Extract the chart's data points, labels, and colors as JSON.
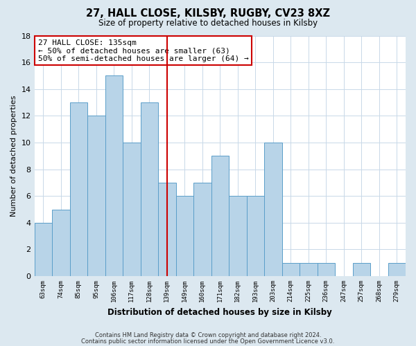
{
  "title": "27, HALL CLOSE, KILSBY, RUGBY, CV23 8XZ",
  "subtitle": "Size of property relative to detached houses in Kilsby",
  "xlabel": "Distribution of detached houses by size in Kilsby",
  "ylabel": "Number of detached properties",
  "categories": [
    "63sqm",
    "74sqm",
    "85sqm",
    "95sqm",
    "106sqm",
    "117sqm",
    "128sqm",
    "139sqm",
    "149sqm",
    "160sqm",
    "171sqm",
    "182sqm",
    "193sqm",
    "203sqm",
    "214sqm",
    "225sqm",
    "236sqm",
    "247sqm",
    "257sqm",
    "268sqm",
    "279sqm"
  ],
  "values": [
    4,
    5,
    13,
    12,
    15,
    10,
    13,
    7,
    6,
    7,
    9,
    6,
    6,
    10,
    1,
    1,
    1,
    0,
    1,
    0,
    1
  ],
  "bar_color": "#b8d4e8",
  "bar_edge_color": "#5a9ec9",
  "vline_color": "#cc0000",
  "annotation_title": "27 HALL CLOSE: 135sqm",
  "annotation_line1": "← 50% of detached houses are smaller (63)",
  "annotation_line2": "50% of semi-detached houses are larger (64) →",
  "annotation_box_edge": "#cc0000",
  "ylim": [
    0,
    18
  ],
  "yticks": [
    0,
    2,
    4,
    6,
    8,
    10,
    12,
    14,
    16,
    18
  ],
  "footer1": "Contains HM Land Registry data © Crown copyright and database right 2024.",
  "footer2": "Contains public sector information licensed under the Open Government Licence v3.0.",
  "bg_color": "#dce8f0",
  "plot_bg_color": "#ffffff",
  "grid_color": "#c8d8e8"
}
